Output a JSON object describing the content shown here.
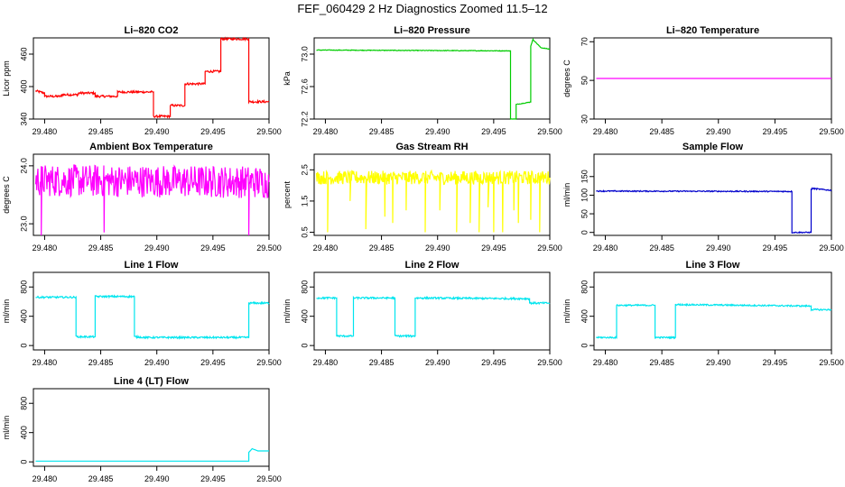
{
  "page": {
    "title": "FEF_060429  2 Hz Diagnostics Zoomed 11.5–12"
  },
  "chart_data": [
    {
      "type": "line",
      "title": "Li–820 CO2",
      "ylabel": "Licor ppm",
      "color": "#ff0000",
      "xlim": [
        29.479,
        29.5
      ],
      "ylim": [
        340,
        490
      ],
      "xticks": [
        "29.480",
        "29.485",
        "29.490",
        "29.495",
        "29.500"
      ],
      "yticks": [
        "340",
        "400",
        "460"
      ],
      "noise": 2,
      "series": [
        {
          "x": [
            29.4792,
            29.48,
            29.48,
            29.4815,
            29.4815,
            29.483,
            29.483,
            29.4845,
            29.4845,
            29.4865,
            29.4865,
            29.4897,
            29.4897,
            29.4912,
            29.4912,
            29.4925,
            29.4925,
            29.4943,
            29.4943,
            29.4957,
            29.4957,
            29.4982,
            29.4982,
            29.5
          ],
          "y": [
            392,
            388,
            382,
            382,
            385,
            385,
            388,
            388,
            382,
            382,
            390,
            390,
            345,
            345,
            365,
            365,
            405,
            405,
            428,
            428,
            488,
            488,
            372,
            372
          ]
        }
      ]
    },
    {
      "type": "line",
      "title": "Li–820 Pressure",
      "ylabel": "kPa",
      "color": "#00cc00",
      "xlim": [
        29.479,
        29.5
      ],
      "ylim": [
        72.2,
        73.2
      ],
      "xticks": [
        "29.480",
        "29.485",
        "29.490",
        "29.495",
        "29.500"
      ],
      "yticks": [
        "72.2",
        "72.6",
        "73.0"
      ],
      "noise": 0.004,
      "series": [
        {
          "x": [
            29.4792,
            29.4965,
            29.4965,
            29.497,
            29.497,
            29.4983,
            29.4983,
            29.4985,
            29.4992,
            29.5
          ],
          "y": [
            73.05,
            73.04,
            72.2,
            72.2,
            72.38,
            72.41,
            73.1,
            73.18,
            73.08,
            73.06
          ]
        }
      ]
    },
    {
      "type": "line",
      "title": "Li–820 Temperature",
      "ylabel": "degrees C",
      "color": "#ff00ff",
      "xlim": [
        29.479,
        29.5
      ],
      "ylim": [
        30,
        72
      ],
      "xticks": [
        "29.480",
        "29.485",
        "29.490",
        "29.495",
        "29.500"
      ],
      "yticks": [
        "30",
        "50",
        "70"
      ],
      "noise": 0,
      "series": [
        {
          "x": [
            29.4792,
            29.5
          ],
          "y": [
            51.0,
            51.0
          ]
        }
      ]
    },
    {
      "type": "line",
      "title": "Ambient Box Temperature",
      "ylabel": "degrees C",
      "color": "#ff00ff",
      "xlim": [
        29.479,
        29.5
      ],
      "ylim": [
        22.8,
        24.2
      ],
      "xticks": [
        "29.480",
        "29.485",
        "29.490",
        "29.495",
        "29.500"
      ],
      "yticks": [
        "23.0",
        "24.0"
      ],
      "noise": 0.28,
      "spikes": [
        [
          29.4797,
          22.7
        ],
        [
          29.4853,
          22.85
        ],
        [
          29.4982,
          22.8
        ]
      ],
      "series": [
        {
          "x": [
            29.4792,
            29.5
          ],
          "y": [
            23.75,
            23.72
          ]
        }
      ]
    },
    {
      "type": "line",
      "title": "Gas Stream RH",
      "ylabel": "percent",
      "color": "#ffff00",
      "xlim": [
        29.479,
        29.5
      ],
      "ylim": [
        0.4,
        3.0
      ],
      "xticks": [
        "29.480",
        "29.485",
        "29.490",
        "29.495",
        "29.500"
      ],
      "yticks": [
        "0.5",
        "1.5",
        "2.5"
      ],
      "noise": 0.22,
      "spikes": [
        [
          29.4802,
          0.5
        ],
        [
          29.4822,
          1.5
        ],
        [
          29.4836,
          0.6
        ],
        [
          29.4853,
          1.0
        ],
        [
          29.486,
          0.8
        ],
        [
          29.4872,
          1.2
        ],
        [
          29.4889,
          0.5
        ],
        [
          29.4902,
          1.2
        ],
        [
          29.4917,
          0.5
        ],
        [
          29.4929,
          0.8
        ],
        [
          29.4937,
          0.5
        ],
        [
          29.4945,
          1.3
        ],
        [
          29.495,
          0.5
        ],
        [
          29.4958,
          0.5
        ],
        [
          29.4968,
          1.2
        ],
        [
          29.4972,
          0.8
        ],
        [
          29.4983,
          0.9
        ],
        [
          29.4991,
          0.5
        ]
      ],
      "series": [
        {
          "x": [
            29.4792,
            29.5
          ],
          "y": [
            2.25,
            2.25
          ]
        }
      ]
    },
    {
      "type": "line",
      "title": "Sample Flow",
      "ylabel": "ml/min",
      "color": "#0000cc",
      "xlim": [
        29.479,
        29.5
      ],
      "ylim": [
        -8,
        210
      ],
      "xticks": [
        "29.480",
        "29.485",
        "29.490",
        "29.495",
        "29.500"
      ],
      "yticks": [
        "0",
        "50",
        "100",
        "150"
      ],
      "noise": 1.5,
      "series": [
        {
          "x": [
            29.4792,
            29.4965,
            29.4965,
            29.4982,
            29.4982,
            29.4983,
            29.5
          ],
          "y": [
            111,
            110,
            0,
            0,
            115,
            118,
            113
          ]
        }
      ]
    },
    {
      "type": "line",
      "title": "Line 1 Flow",
      "ylabel": "ml/min",
      "color": "#00e5ee",
      "xlim": [
        29.479,
        29.5
      ],
      "ylim": [
        -60,
        1000
      ],
      "xticks": [
        "29.480",
        "29.485",
        "29.490",
        "29.495",
        "29.500"
      ],
      "yticks": [
        "0",
        "400",
        "800"
      ],
      "noise": 12,
      "series": [
        {
          "x": [
            29.4792,
            29.4828,
            29.4828,
            29.4845,
            29.4845,
            29.488,
            29.488,
            29.489,
            29.4982,
            29.4982,
            29.5
          ],
          "y": [
            660,
            660,
            120,
            120,
            670,
            670,
            120,
            110,
            110,
            580,
            580
          ]
        }
      ]
    },
    {
      "type": "line",
      "title": "Line 2 Flow",
      "ylabel": "ml/min",
      "color": "#00e5ee",
      "xlim": [
        29.479,
        29.5
      ],
      "ylim": [
        -60,
        1000
      ],
      "xticks": [
        "29.480",
        "29.485",
        "29.490",
        "29.495",
        "29.500"
      ],
      "yticks": [
        "0",
        "400",
        "800"
      ],
      "noise": 12,
      "series": [
        {
          "x": [
            29.4792,
            29.481,
            29.481,
            29.4825,
            29.4825,
            29.4862,
            29.4862,
            29.488,
            29.488,
            29.4982,
            29.4982,
            29.5
          ],
          "y": [
            650,
            650,
            130,
            130,
            650,
            650,
            130,
            130,
            650,
            640,
            580,
            580
          ]
        }
      ]
    },
    {
      "type": "line",
      "title": "Line 3 Flow",
      "ylabel": "ml/min",
      "color": "#00e5ee",
      "xlim": [
        29.479,
        29.5
      ],
      "ylim": [
        -60,
        1000
      ],
      "xticks": [
        "29.480",
        "29.485",
        "29.490",
        "29.495",
        "29.500"
      ],
      "yticks": [
        "0",
        "400",
        "800"
      ],
      "noise": 10,
      "series": [
        {
          "x": [
            29.4792,
            29.481,
            29.481,
            29.4844,
            29.4844,
            29.4862,
            29.4862,
            29.4982,
            29.4982,
            29.5
          ],
          "y": [
            110,
            110,
            550,
            550,
            110,
            110,
            560,
            540,
            490,
            490
          ]
        }
      ]
    },
    {
      "type": "line",
      "title": "Line 4 (LT) Flow",
      "ylabel": "ml/min",
      "color": "#00e5ee",
      "xlim": [
        29.479,
        29.5
      ],
      "ylim": [
        -60,
        1000
      ],
      "xticks": [
        "29.480",
        "29.485",
        "29.490",
        "29.495",
        "29.500"
      ],
      "yticks": [
        "0",
        "400",
        "800"
      ],
      "noise": 0,
      "series": [
        {
          "x": [
            29.4792,
            29.4982,
            29.4982,
            29.4985,
            29.499,
            29.5
          ],
          "y": [
            10,
            10,
            130,
            180,
            150,
            150
          ]
        }
      ]
    }
  ]
}
